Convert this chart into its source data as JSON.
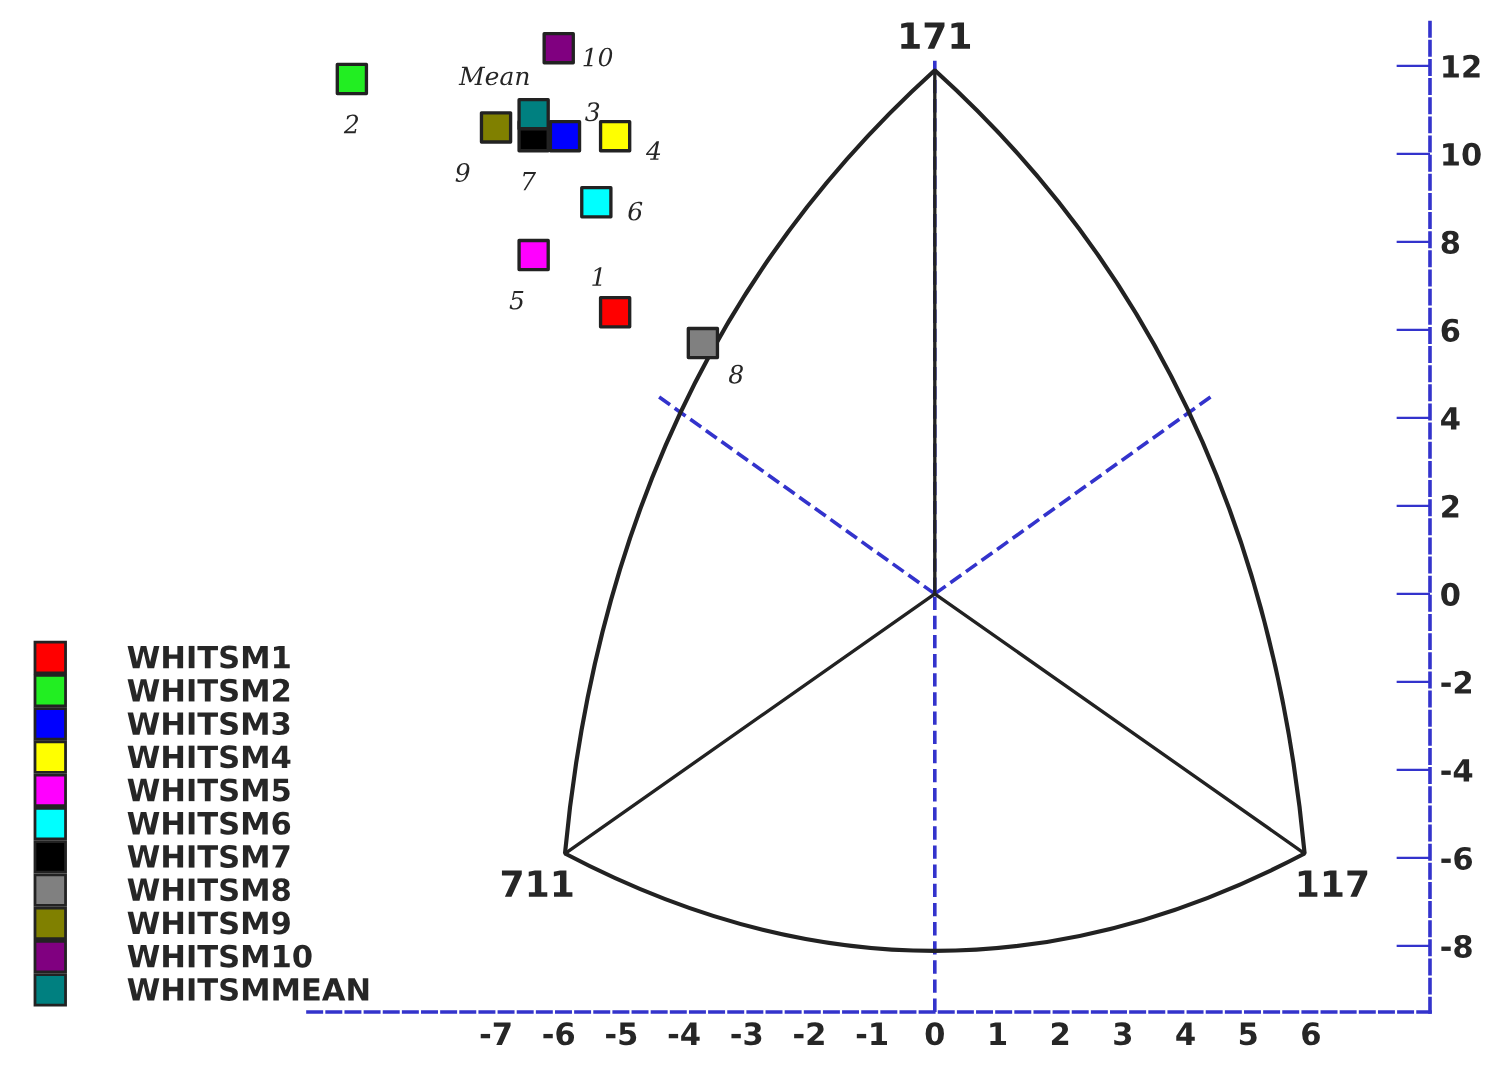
{
  "chart_data": {
    "type": "scatter",
    "marker": "square",
    "legend": "bottom left",
    "grid": false,
    "series": [
      {
        "name": "WHITSM1",
        "color": "#ff0000",
        "x": [
          -5.1
        ],
        "values": [
          6.4
        ]
      },
      {
        "name": "WHITSM2",
        "color": "#22ee22",
        "x": [
          -9.3
        ],
        "values": [
          11.7
        ]
      },
      {
        "name": "WHITSM3",
        "color": "#0000ff",
        "x": [
          -5.9
        ],
        "values": [
          10.4
        ]
      },
      {
        "name": "WHITSM4",
        "color": "#ffff00",
        "x": [
          -5.1
        ],
        "values": [
          10.4
        ]
      },
      {
        "name": "WHITSM5",
        "color": "#ff00ff",
        "x": [
          -6.4
        ],
        "values": [
          7.7
        ]
      },
      {
        "name": "WHITSM6",
        "color": "#00ffff",
        "x": [
          -5.4
        ],
        "values": [
          8.9
        ]
      },
      {
        "name": "WHITSM7",
        "color": "#000000",
        "x": [
          -6.4
        ],
        "values": [
          10.4
        ]
      },
      {
        "name": "WHITSM8",
        "color": "#808080",
        "x": [
          -3.7
        ],
        "values": [
          5.7
        ]
      },
      {
        "name": "WHITSM9",
        "color": "#808000",
        "x": [
          -7.0
        ],
        "values": [
          10.6
        ]
      },
      {
        "name": "WHITSM10",
        "color": "#800080",
        "x": [
          -6.0
        ],
        "values": [
          12.4
        ]
      },
      {
        "name": "WHITSMMEAN",
        "color": "#008080",
        "x": [
          -6.4
        ],
        "values": [
          10.9
        ]
      },
      {
        "type": "line",
        "marker": "none",
        "color": "#222222",
        "x": [
          0,
          0,
          -5.9,
          0,
          5.9
        ],
        "values": [
          11.9,
          0,
          -5.9,
          0,
          -5.9
        ]
      }
    ],
    "annotations": [
      {
        "text": "1",
        "x": -5.1,
        "y": 6.4
      },
      {
        "text": "2",
        "x": -9.3,
        "y": 11.7
      },
      {
        "text": "3",
        "x": -5.9,
        "y": 10.4
      },
      {
        "text": "4",
        "x": -5.1,
        "y": 10.4
      },
      {
        "text": "5",
        "x": -6.4,
        "y": 7.7
      },
      {
        "text": "6",
        "x": -5.4,
        "y": 8.9
      },
      {
        "text": "7",
        "x": -6.4,
        "y": 10.4
      },
      {
        "text": "8",
        "x": -3.7,
        "y": 5.7
      },
      {
        "text": "9",
        "x": -7.0,
        "y": 10.6
      },
      {
        "text": "10",
        "x": -6.0,
        "y": 12.4
      },
      {
        "text": "Mean",
        "x": -6.4,
        "y": 10.9
      },
      "171",
      "711",
      "117"
    ],
    "ref_lines": [
      {
        "axis": "x",
        "value": 0,
        "color": "#3333cc",
        "line_style": "dashed"
      }
    ],
    "xlim": [
      -10,
      7.9
    ],
    "xticks": [
      -7,
      -6,
      -5,
      -4,
      -3,
      -2,
      -1,
      0,
      1,
      2,
      3,
      4,
      5,
      6
    ],
    "ylim": [
      -9.5,
      13
    ],
    "yticks": [
      -8,
      -6,
      -4,
      -2,
      0,
      2,
      4,
      6,
      8,
      10,
      12
    ]
  }
}
